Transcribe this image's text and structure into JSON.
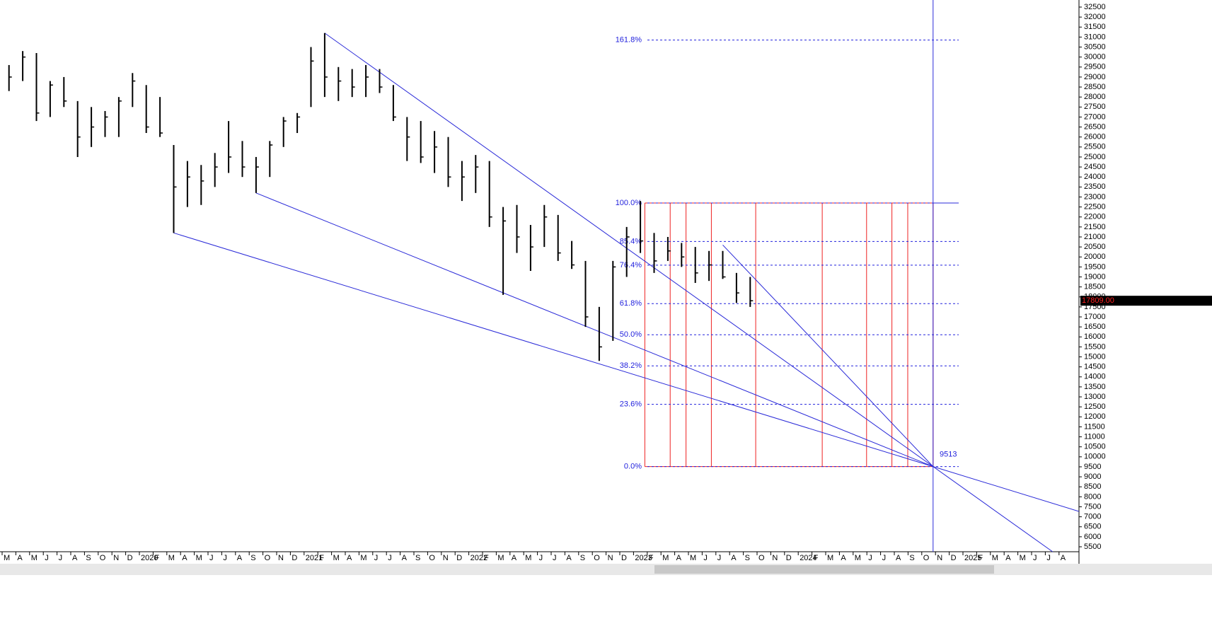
{
  "chart_data": {
    "type": "ohlc",
    "x": [
      "2019-03",
      "2019-04",
      "2019-05",
      "2019-06",
      "2019-07",
      "2019-08",
      "2019-09",
      "2019-10",
      "2019-11",
      "2019-12",
      "2020-01",
      "2020-02",
      "2020-03",
      "2020-04",
      "2020-05",
      "2020-06",
      "2020-07",
      "2020-08",
      "2020-09",
      "2020-10",
      "2020-11",
      "2020-12",
      "2021-01",
      "2021-02",
      "2021-03",
      "2021-04",
      "2021-05",
      "2021-06",
      "2021-07",
      "2021-08",
      "2021-09",
      "2021-10",
      "2021-11",
      "2021-12",
      "2022-01",
      "2022-02",
      "2022-03",
      "2022-04",
      "2022-05",
      "2022-06",
      "2022-07",
      "2022-08",
      "2022-09",
      "2022-10",
      "2022-11",
      "2022-12",
      "2023-01",
      "2023-02",
      "2023-03",
      "2023-04",
      "2023-05",
      "2023-06",
      "2023-07",
      "2023-08",
      "2023-09"
    ],
    "high": [
      29600,
      30300,
      30200,
      28800,
      29000,
      27800,
      27500,
      27300,
      28000,
      29200,
      28600,
      28000,
      25600,
      24800,
      24600,
      25200,
      26800,
      25800,
      25000,
      25800,
      27000,
      27200,
      30500,
      31200,
      29500,
      29400,
      29600,
      29400,
      28600,
      27000,
      26800,
      26300,
      26000,
      24800,
      25100,
      24800,
      22500,
      22600,
      21600,
      22600,
      22100,
      20800,
      19800,
      17500,
      19800,
      21500,
      22800,
      21200,
      21000,
      20700,
      20500,
      20300,
      20300,
      19200,
      19000
    ],
    "low": [
      28300,
      28800,
      26800,
      27000,
      27500,
      25000,
      25500,
      26000,
      26000,
      27500,
      26200,
      26000,
      21200,
      22500,
      22600,
      23500,
      24200,
      24000,
      23200,
      24000,
      25500,
      26200,
      27500,
      28000,
      27800,
      28000,
      28000,
      28200,
      26800,
      24800,
      24700,
      24200,
      23500,
      22800,
      23200,
      21500,
      18100,
      20200,
      19300,
      20500,
      19800,
      19400,
      16500,
      14800,
      15800,
      19000,
      20200,
      19200,
      19800,
      19500,
      18700,
      18800,
      18900,
      17700,
      17500
    ],
    "close": [
      29000,
      30000,
      27200,
      28600,
      27800,
      26000,
      26500,
      27000,
      27800,
      28800,
      26500,
      26200,
      23500,
      24000,
      23800,
      24500,
      25000,
      24500,
      24500,
      25600,
      26800,
      27000,
      29800,
      29000,
      28800,
      28500,
      29000,
      28500,
      27000,
      26000,
      25000,
      25500,
      24000,
      24000,
      24500,
      22000,
      21800,
      21000,
      20500,
      22000,
      20200,
      19600,
      17000,
      15500,
      19500,
      21000,
      20800,
      19800,
      20300,
      20000,
      19200,
      19600,
      19000,
      18200,
      17809
    ],
    "color": "#000000",
    "x_axis_labels": [
      "M",
      "A",
      "M",
      "J",
      "J",
      "A",
      "S",
      "O",
      "N",
      "D",
      "2020",
      "F",
      "M",
      "A",
      "M",
      "J",
      "J",
      "A",
      "S",
      "O",
      "N",
      "D",
      "2021",
      "F",
      "M",
      "A",
      "M",
      "J",
      "J",
      "A",
      "S",
      "O",
      "N",
      "D",
      "2022",
      "F",
      "M",
      "A",
      "M",
      "J",
      "J",
      "A",
      "S",
      "O",
      "N",
      "D",
      "2023",
      "F",
      "M",
      "A",
      "M",
      "J",
      "J",
      "A",
      "S",
      "O",
      "N",
      "D",
      "2024",
      "F",
      "M",
      "A",
      "M",
      "J",
      "J",
      "A",
      "S",
      "O",
      "N",
      "D",
      "2025",
      "F",
      "M",
      "A",
      "M",
      "J",
      "J",
      "A"
    ],
    "ylim": [
      5250,
      32750
    ],
    "yticks": [
      5500,
      6000,
      6500,
      7000,
      7500,
      8000,
      8500,
      9000,
      9500,
      10000,
      10500,
      11000,
      11500,
      12000,
      12500,
      13000,
      13500,
      14000,
      14500,
      15000,
      15500,
      16000,
      16500,
      17000,
      17500,
      18000,
      18500,
      19000,
      19500,
      20000,
      20500,
      21000,
      21500,
      22000,
      22500,
      23000,
      23500,
      24000,
      24500,
      25000,
      25500,
      26000,
      26500,
      27000,
      27500,
      28000,
      28500,
      29000,
      29500,
      30000,
      30500,
      31000,
      31500,
      32000,
      32500
    ],
    "last": {
      "value": 17809,
      "label": "17809.00"
    },
    "fib": {
      "low": 9513,
      "high": 22700,
      "color": "#2222dd",
      "levels": [
        {
          "value": 0,
          "label": "0.0%"
        },
        {
          "value": 23.6,
          "label": "23.6%"
        },
        {
          "value": 38.2,
          "label": "38.2%"
        },
        {
          "value": 50,
          "label": "50.0%"
        },
        {
          "value": 61.8,
          "label": "61.8%"
        },
        {
          "value": 76.4,
          "label": "76.4%"
        },
        {
          "value": 85.4,
          "label": "85.4%"
        },
        {
          "value": 100,
          "label": "100.0%"
        },
        {
          "value": 161.8,
          "label": "161.8%"
        }
      ]
    },
    "cycle": {
      "start": "2023-01",
      "weeks": [
        0,
        8,
        13,
        21,
        35,
        56,
        70,
        78,
        83,
        91
      ],
      "color": "#ee2222"
    },
    "trend_lines": [
      {
        "x": "2020-03",
        "y": 21200,
        "extend": true
      },
      {
        "x": "2020-09",
        "y": 23200,
        "extend": false
      },
      {
        "x": "2021-02",
        "y": 31200,
        "extend": true
      },
      {
        "x": "2023-07",
        "y": 20600,
        "extend": false
      }
    ],
    "line_color": "#2a2ad8"
  }
}
